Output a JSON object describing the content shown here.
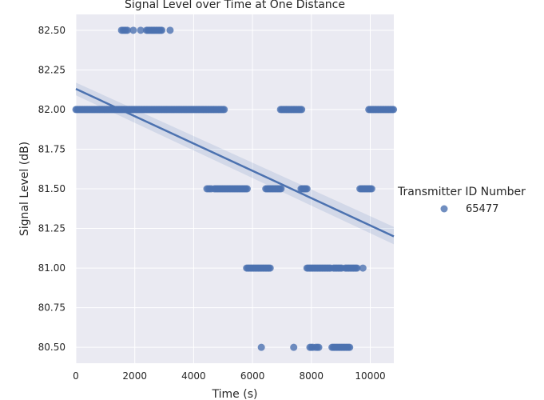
{
  "chart_data": {
    "type": "scatter",
    "title": "Signal Level over Time at One Distance",
    "xlabel": "Time (s)",
    "ylabel": "Signal Level (dB)",
    "xlim": [
      0,
      10800
    ],
    "ylim": [
      80.4,
      82.6
    ],
    "xticks": [
      0,
      2000,
      4000,
      6000,
      8000,
      10000
    ],
    "yticks": [
      80.5,
      80.75,
      81.0,
      81.25,
      81.5,
      81.75,
      82.0,
      82.25,
      82.5
    ],
    "grid": true,
    "background": "#eaeaf2",
    "legend": {
      "title": "Transmitter ID Number",
      "placement": "right",
      "entries": [
        "65477"
      ]
    },
    "series": [
      {
        "name": "65477",
        "color": "#4c72b0",
        "clusters": [
          {
            "y": 82.5,
            "x_start": 1550,
            "x_end": 1750,
            "step": 50
          },
          {
            "y": 82.5,
            "x": [
              1950,
              2200
            ]
          },
          {
            "y": 82.5,
            "x_start": 2400,
            "x_end": 2950,
            "step": 40
          },
          {
            "y": 82.5,
            "x": [
              3200
            ]
          },
          {
            "y": 82.0,
            "x_start": 0,
            "x_end": 5050,
            "step": 40
          },
          {
            "y": 82.0,
            "x_start": 6950,
            "x_end": 7700,
            "step": 40
          },
          {
            "y": 82.0,
            "x_start": 9950,
            "x_end": 10800,
            "step": 40
          },
          {
            "y": 81.5,
            "x_start": 4450,
            "x_end": 4600,
            "step": 50
          },
          {
            "y": 81.5,
            "x_start": 4700,
            "x_end": 5850,
            "step": 40
          },
          {
            "y": 81.5,
            "x_start": 6450,
            "x_end": 7000,
            "step": 40
          },
          {
            "y": 81.5,
            "x_start": 7650,
            "x_end": 7850,
            "step": 40
          },
          {
            "y": 81.5,
            "x_start": 9650,
            "x_end": 10050,
            "step": 40
          },
          {
            "y": 81.0,
            "x_start": 5800,
            "x_end": 6600,
            "step": 40
          },
          {
            "y": 81.0,
            "x_start": 7850,
            "x_end": 8650,
            "step": 40
          },
          {
            "y": 81.0,
            "x_start": 8750,
            "x_end": 9050,
            "step": 40
          },
          {
            "y": 81.0,
            "x_start": 9150,
            "x_end": 9550,
            "step": 40
          },
          {
            "y": 81.0,
            "x": [
              9750
            ]
          },
          {
            "y": 80.5,
            "x": [
              6300,
              7400
            ]
          },
          {
            "y": 80.5,
            "x_start": 7950,
            "x_end": 8050,
            "step": 50
          },
          {
            "y": 80.5,
            "x_start": 8150,
            "x_end": 8250,
            "step": 50
          },
          {
            "y": 80.5,
            "x_start": 8700,
            "x_end": 9300,
            "step": 40
          }
        ]
      }
    ],
    "regression": {
      "color": "#4c72b0",
      "x": [
        0,
        10800
      ],
      "y": [
        82.13,
        81.2
      ],
      "ci_start": [
        82.09,
        82.17
      ],
      "ci_end": [
        81.15,
        81.26
      ]
    }
  }
}
